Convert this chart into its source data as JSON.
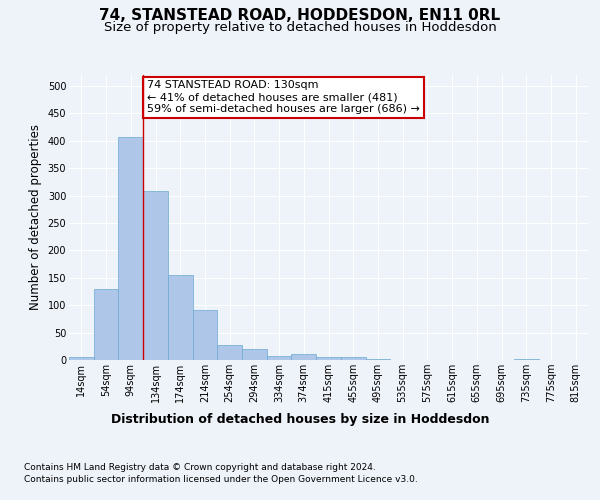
{
  "title": "74, STANSTEAD ROAD, HODDESDON, EN11 0RL",
  "subtitle": "Size of property relative to detached houses in Hoddesdon",
  "xlabel": "Distribution of detached houses by size in Hoddesdon",
  "ylabel": "Number of detached properties",
  "footer_line1": "Contains HM Land Registry data © Crown copyright and database right 2024.",
  "footer_line2": "Contains public sector information licensed under the Open Government Licence v3.0.",
  "bar_labels": [
    "14sqm",
    "54sqm",
    "94sqm",
    "134sqm",
    "174sqm",
    "214sqm",
    "254sqm",
    "294sqm",
    "334sqm",
    "374sqm",
    "415sqm",
    "455sqm",
    "495sqm",
    "535sqm",
    "575sqm",
    "615sqm",
    "655sqm",
    "695sqm",
    "735sqm",
    "775sqm",
    "815sqm"
  ],
  "bar_values": [
    5,
    130,
    407,
    308,
    155,
    91,
    28,
    20,
    8,
    11,
    5,
    5,
    2,
    0,
    0,
    0,
    0,
    0,
    1,
    0,
    0
  ],
  "bar_color": "#aec6e8",
  "bar_edgecolor": "#6aaad4",
  "property_label": "74 STANSTEAD ROAD: 130sqm",
  "annotation_line1": "← 41% of detached houses are smaller (481)",
  "annotation_line2": "59% of semi-detached houses are larger (686) →",
  "vline_color": "#cc0000",
  "vline_x_index": 2.5,
  "annotation_box_color": "#cc0000",
  "ylim": [
    0,
    520
  ],
  "yticks": [
    0,
    50,
    100,
    150,
    200,
    250,
    300,
    350,
    400,
    450,
    500
  ],
  "background_color": "#eef2f9",
  "plot_bg_color": "#eef2f9",
  "grid_color": "#ffffff",
  "title_fontsize": 11,
  "subtitle_fontsize": 9.5,
  "ylabel_fontsize": 8.5,
  "xlabel_fontsize": 9,
  "tick_fontsize": 7,
  "annotation_fontsize": 8,
  "footer_fontsize": 6.5
}
